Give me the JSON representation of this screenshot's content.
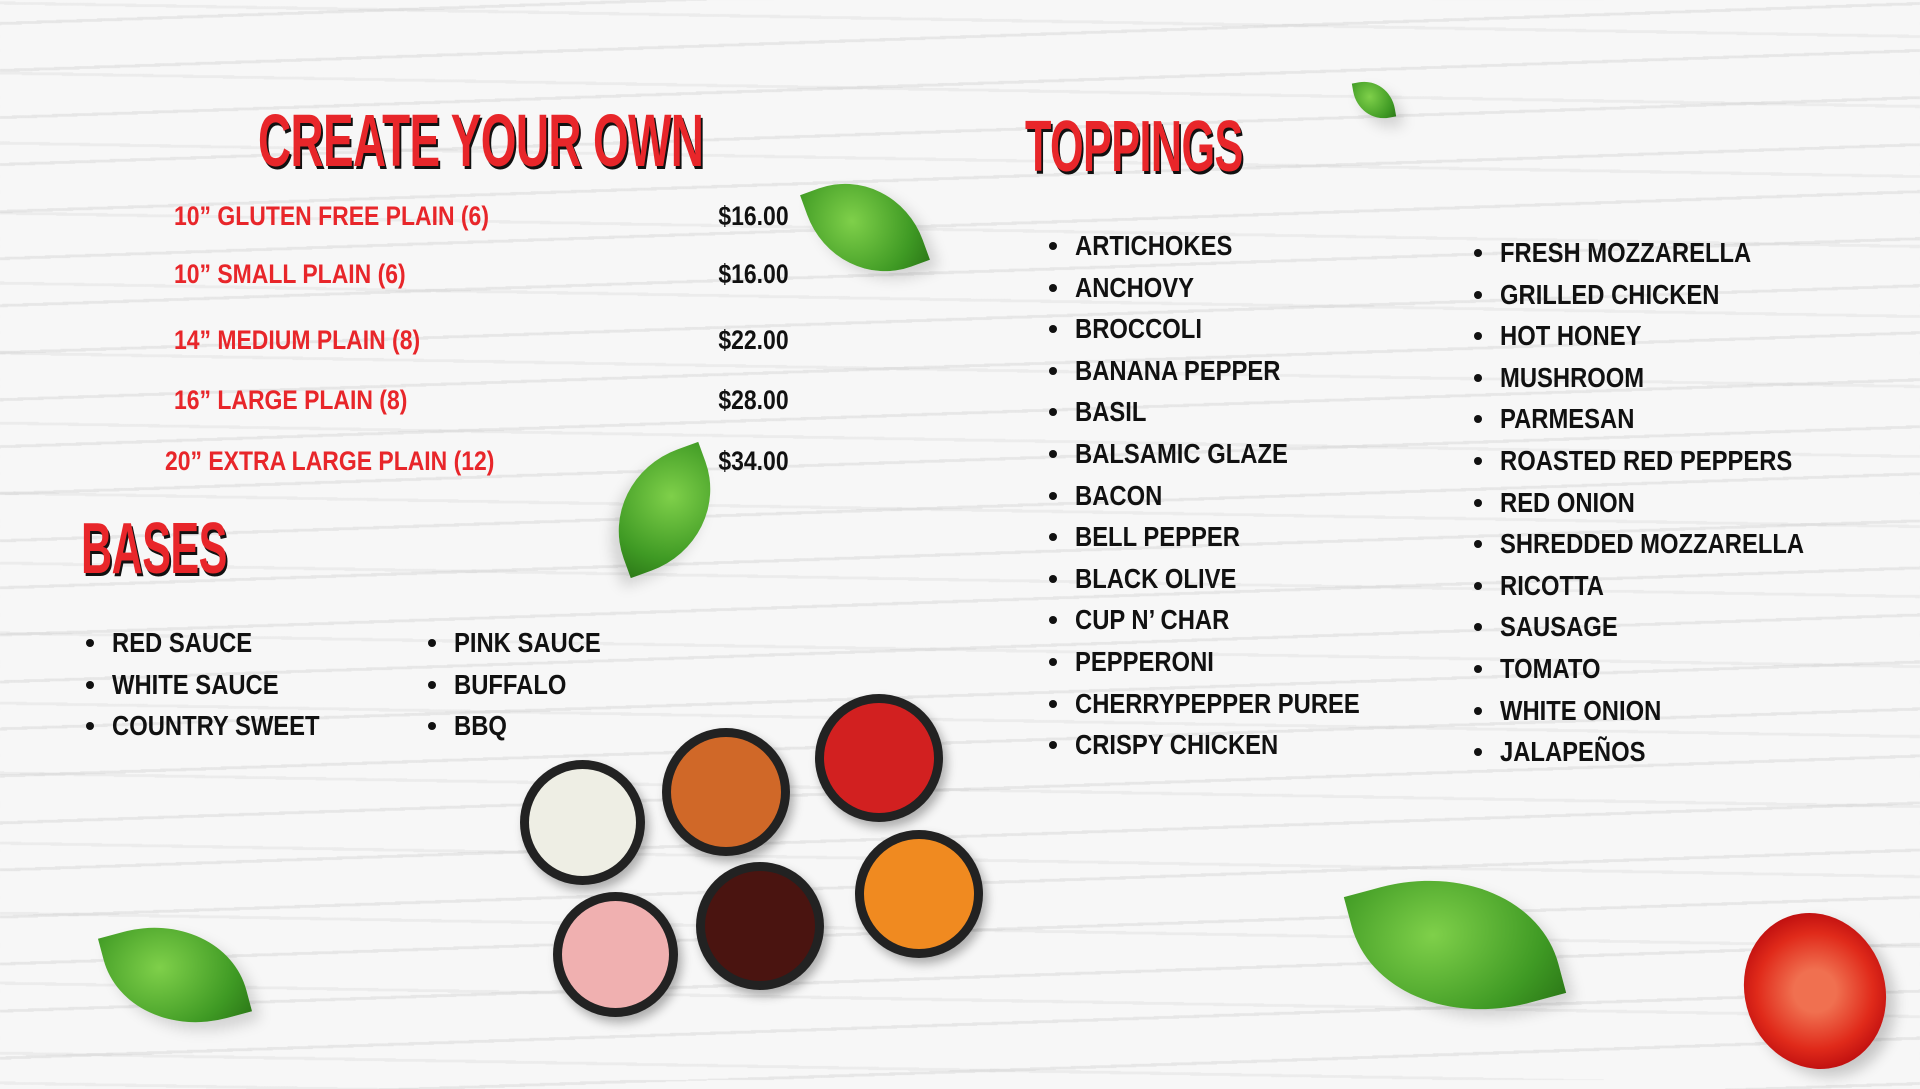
{
  "create_your_own": {
    "title": "CREATE YOUR OWN",
    "items": [
      {
        "label": "10” GLUTEN FREE PLAIN (6)",
        "price": "$16.00"
      },
      {
        "label": "10” SMALL PLAIN (6)",
        "price": "$16.00"
      },
      {
        "label": "14” MEDIUM PLAIN (8)",
        "price": "$22.00"
      },
      {
        "label": "16” LARGE PLAIN (8)",
        "price": "$28.00"
      },
      {
        "label": "20” EXTRA LARGE PLAIN (12)",
        "price": "$34.00"
      }
    ]
  },
  "bases": {
    "title": "BASES",
    "col1": [
      "RED SAUCE",
      "WHITE SAUCE",
      "COUNTRY SWEET"
    ],
    "col2": [
      "PINK SAUCE",
      "BUFFALO",
      "BBQ"
    ]
  },
  "toppings": {
    "title": "TOPPINGS",
    "col1": [
      "ARTICHOKES",
      "ANCHOVY",
      "BROCCOLI",
      "BANANA PEPPER",
      "BASIL",
      "BALSAMIC GLAZE",
      "BACON",
      "BELL PEPPER",
      "BLACK OLIVE",
      "CUP N’ CHAR",
      "PEPPERONI",
      "CHERRYPEPPER PUREE",
      "CRISPY CHICKEN"
    ],
    "col2": [
      "FRESH MOZZARELLA",
      "GRILLED CHICKEN",
      "HOT HONEY",
      "MUSHROOM",
      "PARMESAN",
      "ROASTED RED PEPPERS",
      "RED ONION",
      "SHREDDED MOZZARELLA",
      "RICOTTA",
      "SAUSAGE",
      "TOMATO",
      "WHITE ONION",
      "JALAPEÑOS"
    ]
  },
  "colors": {
    "accent": "#e8262a",
    "text": "#111111"
  }
}
